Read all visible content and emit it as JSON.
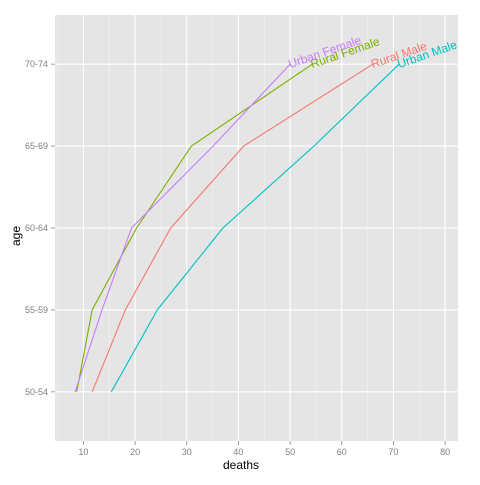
{
  "chart_data": {
    "type": "line",
    "xlabel": "deaths",
    "ylabel": "age",
    "xlim": [
      4.5,
      82.5
    ],
    "x_ticks": [
      10,
      20,
      30,
      40,
      50,
      60,
      70,
      80
    ],
    "x_tick_labels": [
      "10",
      "20",
      "30",
      "40",
      "50",
      "60",
      "70",
      "80"
    ],
    "categories": [
      "50-54",
      "55-59",
      "60-64",
      "65-69",
      "70-74"
    ],
    "grid": true,
    "legend": "none (direct labels at line ends)",
    "panel_background": "#e5e5e5",
    "grid_color": "#ffffff",
    "series": [
      {
        "name": "Rural Male",
        "color": "#f8766d",
        "values": [
          11.7,
          18.1,
          26.9,
          41.0,
          66.0
        ]
      },
      {
        "name": "Rural Female",
        "color": "#7cae00",
        "values": [
          8.7,
          11.7,
          20.3,
          30.9,
          54.3
        ]
      },
      {
        "name": "Urban Male",
        "color": "#00bfc4",
        "values": [
          15.4,
          24.3,
          37.0,
          54.6,
          71.1
        ]
      },
      {
        "name": "Urban Female",
        "color": "#c77cff",
        "values": [
          8.4,
          13.6,
          19.3,
          35.1,
          50.0
        ]
      }
    ]
  }
}
